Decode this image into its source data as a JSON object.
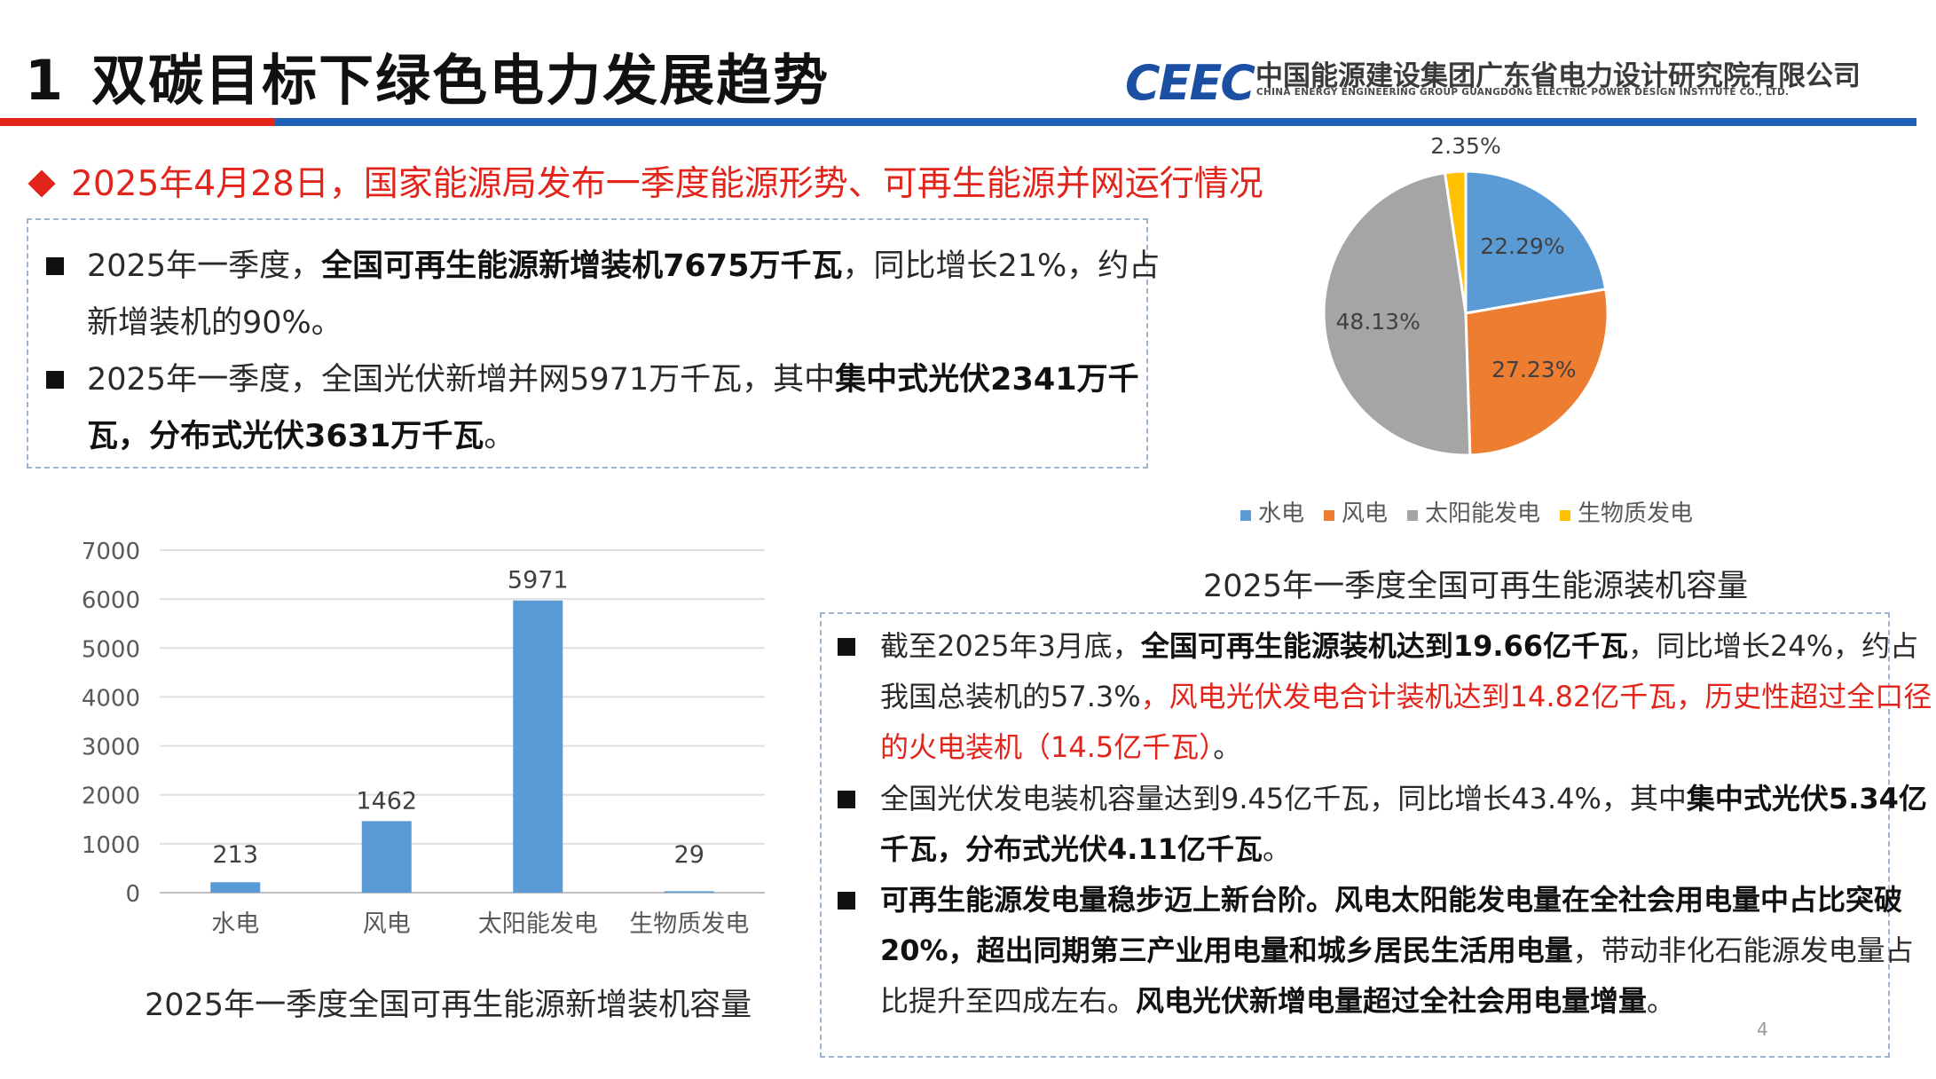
{
  "header": {
    "section_number": "1",
    "title": "双碳目标下绿色电力发展趋势",
    "logo_mark": "CEEC",
    "org_name_cn": "中国能源建设集团广东省电力设计研究院有限公司",
    "org_name_en": "CHINA ENERGY ENGINEERING GROUP GUANGDONG ELECTRIC POWER DESIGN INSTITUTE CO., LTD."
  },
  "headline": "2025年4月28日，国家能源局发布一季度能源形势、可再生能源并网运行情况",
  "box1": {
    "b1": {
      "pre": "2025年一季度，",
      "bold": "全国可再生能源新增装机7675万千瓦",
      "post": "，同比增长21%，约占新增装机的90%。"
    },
    "b2": {
      "pre": "2025年一季度，全国光伏新增并网5971万千瓦，其中",
      "bold": "集中式光伏2341万千瓦，分布式光伏3631万千瓦",
      "post": "。"
    }
  },
  "box2": {
    "b1": {
      "pre": "截至2025年3月底，",
      "bold": "全国可再生能源装机达到19.66亿千瓦",
      "mid": "，同比增长24%，约占我国总装机的57.3%",
      "red": "，风电光伏发电合计装机达到14.82亿千瓦，历史性超过全口径的火电装机（14.5亿千瓦）",
      "post": "。"
    },
    "b2": {
      "pre": "全国光伏发电装机容量达到9.45亿千瓦，同比增长43.4%，其中",
      "bold": "集中式光伏5.34亿千瓦，分布式光伏4.11亿千瓦",
      "post": "。"
    },
    "b3": {
      "bold1": "可再生能源发电量稳步迈上新台阶。风电太阳能发电量在全社会用电量中占比突破20%，超出同期第三产业用电量和城乡居民生活用电量",
      "mid": "，带动非化石能源发电量占比提升至四成左右。",
      "bold2": "风电光伏新增电量超过全社会用电量增量",
      "post": "。"
    }
  },
  "page_number": "4",
  "colors": {
    "accent_red": "#e2241b",
    "accent_blue": "#1f5fb6",
    "bar": "#5b9bd5",
    "hydro": "#5b9bd5",
    "wind": "#ed7d31",
    "solar": "#a5a5a5",
    "bio": "#ffc000"
  },
  "chart_data": [
    {
      "type": "bar",
      "title": "2025年一季度全国可再生能源新增装机容量",
      "categories": [
        "水电",
        "风电",
        "太阳能发电",
        "生物质发电"
      ],
      "values": [
        213,
        1462,
        5971,
        29
      ],
      "value_labels": [
        "213",
        "1462",
        "5971",
        "29"
      ],
      "ylim": [
        0,
        7000
      ],
      "yticks": [
        0,
        1000,
        2000,
        3000,
        4000,
        5000,
        6000,
        7000
      ],
      "ytick_labels": [
        "0",
        "1000",
        "2000",
        "3000",
        "4000",
        "5000",
        "6000",
        "7000"
      ],
      "grid": true
    },
    {
      "type": "pie",
      "title": "2025年一季度全国可再生能源装机容量",
      "categories": [
        "水电",
        "风电",
        "太阳能发电",
        "生物质发电"
      ],
      "values": [
        22.29,
        27.23,
        48.13,
        2.35
      ],
      "value_labels": [
        "22.29%",
        "27.23%",
        "48.13%",
        "2.35%"
      ],
      "legend_position": "bottom"
    }
  ]
}
